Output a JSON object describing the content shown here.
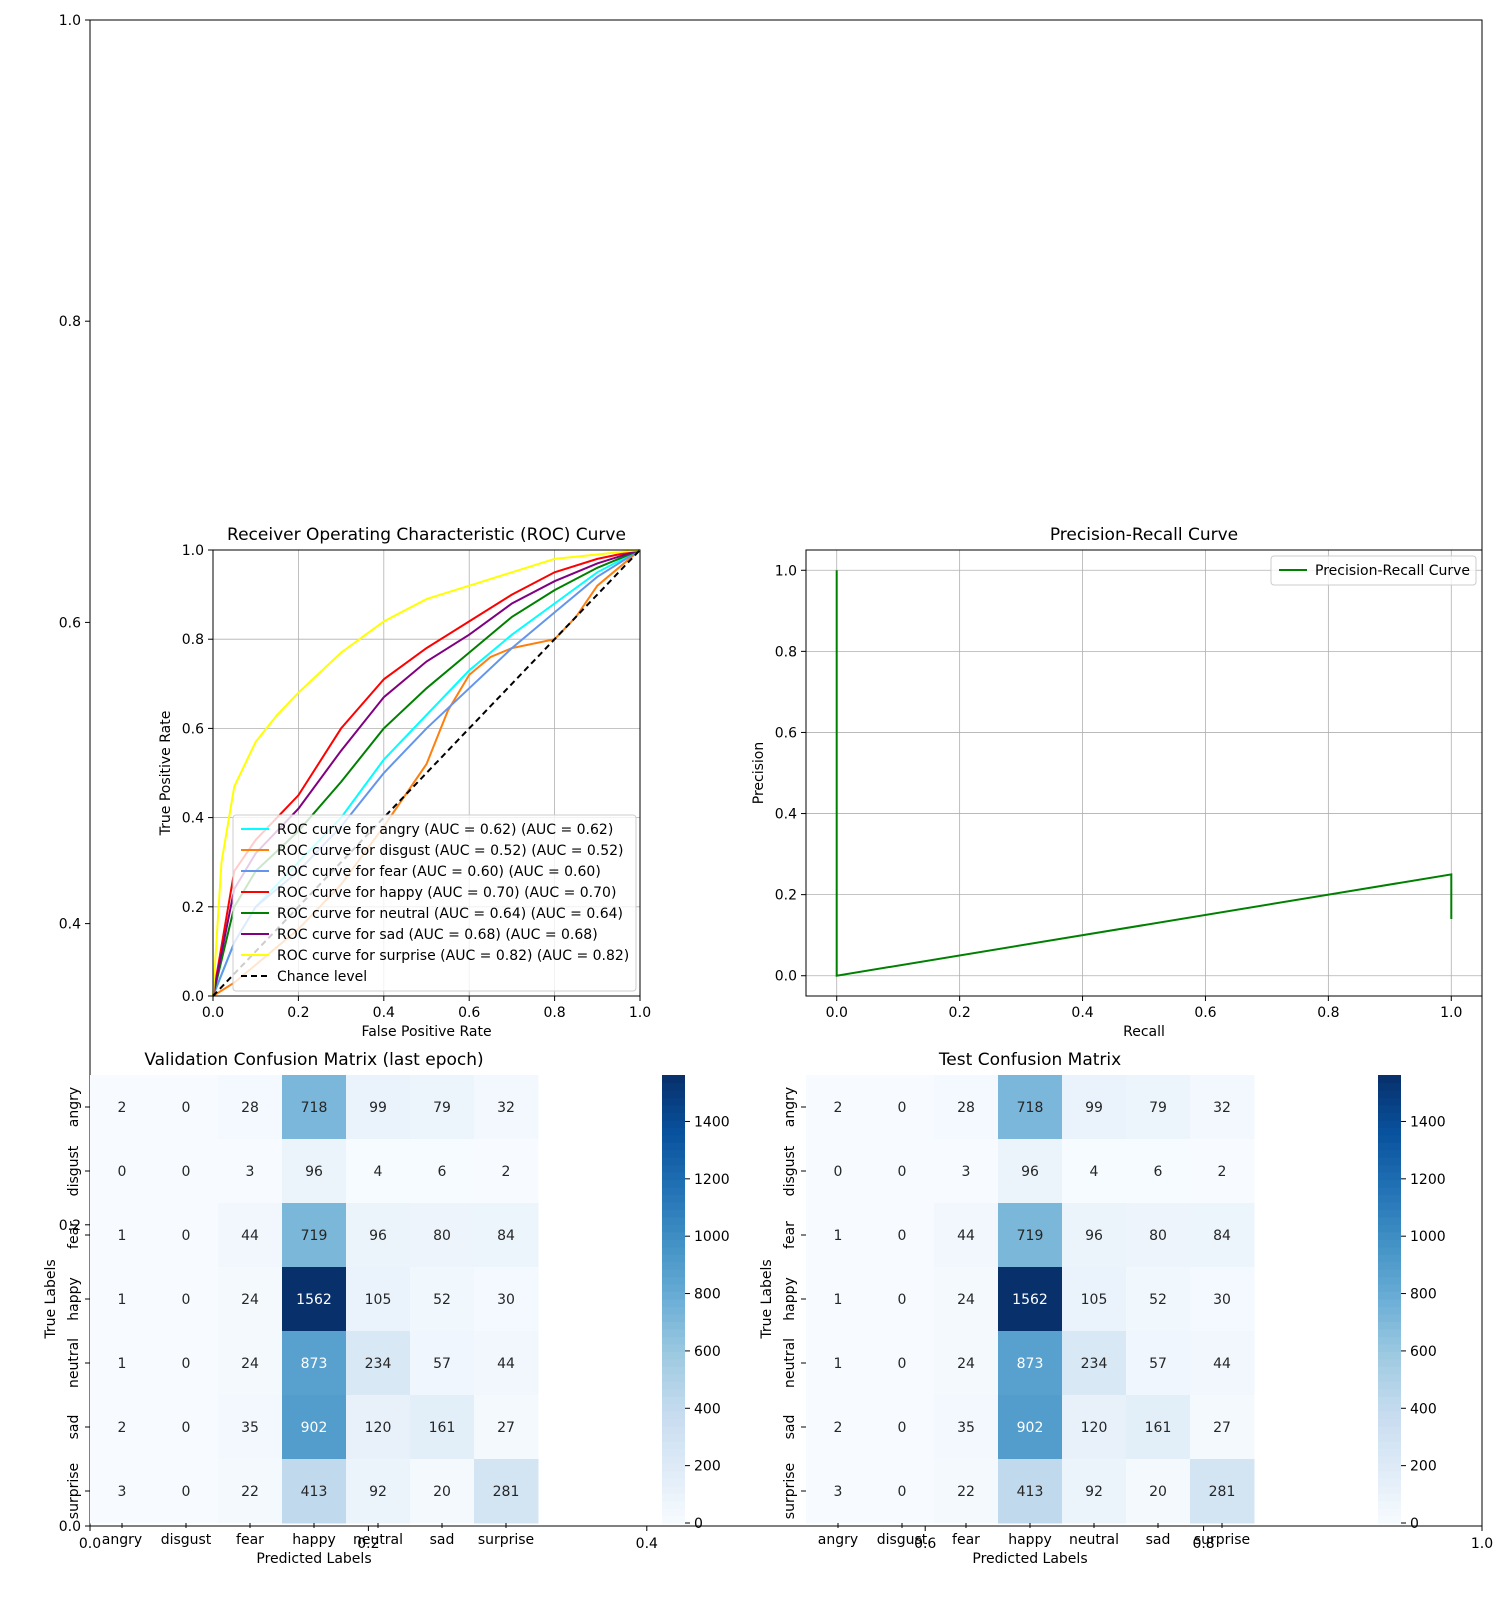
{
  "chart_data": [
    {
      "type": "line",
      "id": "background_axes",
      "title": "",
      "xlabel": "",
      "ylabel": "",
      "xlim": [
        0,
        1
      ],
      "ylim": [
        0,
        1
      ],
      "xticks": [
        "0.0",
        "0.2",
        "0.4",
        "0.6",
        "0.8",
        "1.0"
      ],
      "yticks": [
        "0.0",
        "0.2",
        "0.4",
        "0.6",
        "0.8",
        "1.0"
      ],
      "grid": false,
      "series": []
    },
    {
      "type": "line",
      "id": "roc",
      "title": "Receiver Operating Characteristic (ROC) Curve",
      "xlabel": "False Positive Rate",
      "ylabel": "True Positive Rate",
      "xlim": [
        0,
        1
      ],
      "ylim": [
        0,
        1
      ],
      "xticks": [
        "0.0",
        "0.2",
        "0.4",
        "0.6",
        "0.8",
        "1.0"
      ],
      "yticks": [
        "0.0",
        "0.2",
        "0.4",
        "0.6",
        "0.8",
        "1.0"
      ],
      "grid": true,
      "legend_position": "lower-right",
      "series": [
        {
          "name": "ROC curve for angry (AUC = 0.62) (AUC = 0.62)",
          "color": "#00ffff",
          "x": [
            0,
            0.05,
            0.1,
            0.2,
            0.3,
            0.4,
            0.5,
            0.6,
            0.7,
            0.8,
            0.9,
            1.0
          ],
          "y": [
            0,
            0.12,
            0.2,
            0.3,
            0.4,
            0.53,
            0.63,
            0.73,
            0.81,
            0.88,
            0.95,
            1.0
          ]
        },
        {
          "name": "ROC curve for disgust (AUC = 0.52) (AUC = 0.52)",
          "color": "#ff7f0e",
          "x": [
            0,
            0.05,
            0.1,
            0.2,
            0.3,
            0.4,
            0.45,
            0.5,
            0.55,
            0.6,
            0.65,
            0.7,
            0.8,
            0.85,
            0.9,
            1.0
          ],
          "y": [
            0,
            0.03,
            0.07,
            0.15,
            0.25,
            0.38,
            0.45,
            0.52,
            0.64,
            0.72,
            0.76,
            0.78,
            0.8,
            0.85,
            0.92,
            1.0
          ]
        },
        {
          "name": "ROC curve for fear (AUC = 0.60) (AUC = 0.60)",
          "color": "#6495ed",
          "x": [
            0,
            0.05,
            0.1,
            0.2,
            0.3,
            0.4,
            0.5,
            0.6,
            0.7,
            0.8,
            0.9,
            1.0
          ],
          "y": [
            0,
            0.12,
            0.2,
            0.28,
            0.38,
            0.5,
            0.6,
            0.69,
            0.78,
            0.86,
            0.94,
            1.0
          ]
        },
        {
          "name": "ROC curve for happy (AUC = 0.70) (AUC = 0.70)",
          "color": "#ff0000",
          "x": [
            0,
            0.05,
            0.1,
            0.2,
            0.3,
            0.4,
            0.5,
            0.6,
            0.7,
            0.8,
            0.9,
            1.0
          ],
          "y": [
            0,
            0.28,
            0.35,
            0.45,
            0.6,
            0.71,
            0.78,
            0.84,
            0.9,
            0.95,
            0.98,
            1.0
          ]
        },
        {
          "name": "ROC curve for neutral (AUC = 0.64) (AUC = 0.64)",
          "color": "#008000",
          "x": [
            0,
            0.05,
            0.1,
            0.2,
            0.3,
            0.4,
            0.5,
            0.6,
            0.7,
            0.8,
            0.9,
            1.0
          ],
          "y": [
            0,
            0.2,
            0.28,
            0.37,
            0.48,
            0.6,
            0.69,
            0.77,
            0.85,
            0.91,
            0.96,
            1.0
          ]
        },
        {
          "name": "ROC curve for sad (AUC = 0.68) (AUC = 0.68)",
          "color": "#800080",
          "x": [
            0,
            0.05,
            0.1,
            0.2,
            0.3,
            0.4,
            0.5,
            0.6,
            0.7,
            0.8,
            0.9,
            1.0
          ],
          "y": [
            0,
            0.24,
            0.32,
            0.42,
            0.55,
            0.67,
            0.75,
            0.81,
            0.88,
            0.93,
            0.97,
            1.0
          ]
        },
        {
          "name": "ROC curve for surprise (AUC = 0.82) (AUC = 0.82)",
          "color": "#ffff00",
          "x": [
            0,
            0.02,
            0.05,
            0.1,
            0.15,
            0.2,
            0.3,
            0.4,
            0.5,
            0.6,
            0.7,
            0.8,
            0.9,
            1.0
          ],
          "y": [
            0,
            0.3,
            0.47,
            0.57,
            0.63,
            0.68,
            0.77,
            0.84,
            0.89,
            0.92,
            0.95,
            0.98,
            0.99,
            1.0
          ]
        },
        {
          "name": "Chance level",
          "color": "#000000",
          "dash": true,
          "x": [
            0,
            1
          ],
          "y": [
            0,
            1
          ]
        }
      ]
    },
    {
      "type": "line",
      "id": "pr",
      "title": "Precision-Recall Curve",
      "xlabel": "Recall",
      "ylabel": "Precision",
      "xlim": [
        -0.05,
        1.05
      ],
      "ylim": [
        -0.05,
        1.05
      ],
      "xticks": [
        "0.0",
        "0.2",
        "0.4",
        "0.6",
        "0.8",
        "1.0"
      ],
      "yticks": [
        "0.0",
        "0.2",
        "0.4",
        "0.6",
        "0.8",
        "1.0"
      ],
      "grid": true,
      "legend_position": "upper-right",
      "series": [
        {
          "name": "Precision-Recall Curve",
          "color": "#008000",
          "x": [
            0,
            0,
            1.0,
            1.0
          ],
          "y": [
            1.0,
            0.0,
            0.25,
            0.14
          ]
        }
      ]
    },
    {
      "type": "heatmap",
      "id": "val_cm",
      "title": "Validation Confusion Matrix (last epoch)",
      "xlabel": "Predicted Labels",
      "ylabel": "True Labels",
      "labels": [
        "angry",
        "disgust",
        "fear",
        "happy",
        "neutral",
        "sad",
        "surprise"
      ],
      "matrix": [
        [
          2,
          0,
          28,
          718,
          99,
          79,
          32
        ],
        [
          0,
          0,
          3,
          96,
          4,
          6,
          2
        ],
        [
          1,
          0,
          44,
          719,
          96,
          80,
          84
        ],
        [
          1,
          0,
          24,
          1562,
          105,
          52,
          30
        ],
        [
          1,
          0,
          24,
          873,
          234,
          57,
          44
        ],
        [
          2,
          0,
          35,
          902,
          120,
          161,
          27
        ],
        [
          3,
          0,
          22,
          413,
          92,
          20,
          281
        ]
      ],
      "colorbar_ticks": [
        "0",
        "200",
        "400",
        "600",
        "800",
        "1000",
        "1200",
        "1400"
      ],
      "vmax": 1562
    },
    {
      "type": "heatmap",
      "id": "test_cm",
      "title": "Test Confusion Matrix",
      "xlabel": "Predicted Labels",
      "ylabel": "True Labels",
      "labels": [
        "angry",
        "disgust",
        "fear",
        "happy",
        "neutral",
        "sad",
        "surprise"
      ],
      "matrix": [
        [
          2,
          0,
          28,
          718,
          99,
          79,
          32
        ],
        [
          0,
          0,
          3,
          96,
          4,
          6,
          2
        ],
        [
          1,
          0,
          44,
          719,
          96,
          80,
          84
        ],
        [
          1,
          0,
          24,
          1562,
          105,
          52,
          30
        ],
        [
          1,
          0,
          24,
          873,
          234,
          57,
          44
        ],
        [
          2,
          0,
          35,
          902,
          120,
          161,
          27
        ],
        [
          3,
          0,
          22,
          413,
          92,
          20,
          281
        ]
      ],
      "colorbar_ticks": [
        "0",
        "200",
        "400",
        "600",
        "800",
        "1000",
        "1200",
        "1400"
      ],
      "vmax": 1562
    }
  ]
}
